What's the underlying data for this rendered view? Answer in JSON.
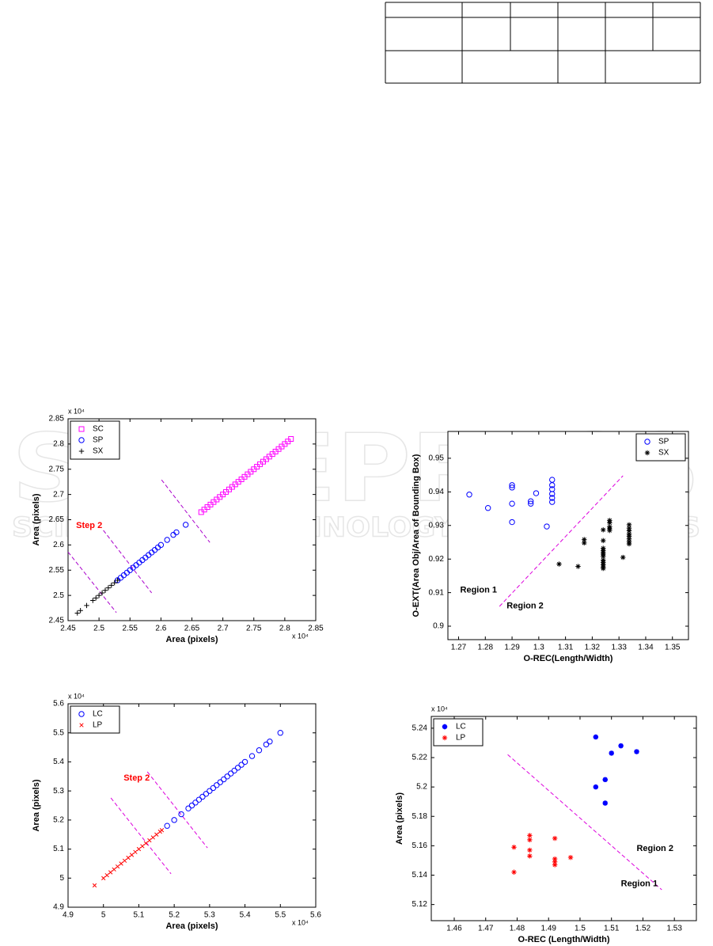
{
  "watermark": {
    "title": "SCITEPRESS",
    "subtitle": "SCIENCE AND TECHNOLOGY PUBLICATIONS"
  },
  "chart_data": [
    {
      "type": "scatter",
      "x_label": "Area (pixels)",
      "y_label": "Area (pixels)",
      "x_exponent": "x 10⁴",
      "y_exponent": "x 10⁴",
      "xlim": [
        2.45,
        2.85
      ],
      "ylim": [
        2.45,
        2.85
      ],
      "xticks": [
        2.45,
        2.5,
        2.55,
        2.6,
        2.65,
        2.7,
        2.75,
        2.8,
        2.85
      ],
      "yticks": [
        2.45,
        2.5,
        2.55,
        2.6,
        2.65,
        2.7,
        2.75,
        2.8,
        2.85
      ],
      "legend": "upper left",
      "series": [
        {
          "name": "SC",
          "color": "#ff00ff",
          "marker": "square",
          "x": [
            2.665,
            2.67,
            2.675,
            2.68,
            2.685,
            2.69,
            2.695,
            2.7,
            2.705,
            2.71,
            2.715,
            2.72,
            2.725,
            2.73,
            2.735,
            2.74,
            2.745,
            2.75,
            2.755,
            2.76,
            2.765,
            2.77,
            2.775,
            2.78,
            2.785,
            2.79,
            2.795,
            2.8,
            2.805,
            2.81
          ],
          "y": [
            2.665,
            2.67,
            2.675,
            2.68,
            2.685,
            2.69,
            2.695,
            2.7,
            2.705,
            2.71,
            2.715,
            2.72,
            2.725,
            2.73,
            2.735,
            2.74,
            2.745,
            2.75,
            2.755,
            2.76,
            2.765,
            2.77,
            2.775,
            2.78,
            2.785,
            2.79,
            2.795,
            2.8,
            2.805,
            2.81
          ]
        },
        {
          "name": "SP",
          "color": "#0000ff",
          "marker": "circle",
          "x": [
            2.53,
            2.535,
            2.54,
            2.545,
            2.55,
            2.555,
            2.56,
            2.565,
            2.57,
            2.575,
            2.58,
            2.585,
            2.59,
            2.595,
            2.6,
            2.61,
            2.62,
            2.625,
            2.64
          ],
          "y": [
            2.53,
            2.535,
            2.54,
            2.545,
            2.55,
            2.555,
            2.56,
            2.565,
            2.57,
            2.575,
            2.58,
            2.585,
            2.59,
            2.595,
            2.6,
            2.61,
            2.62,
            2.625,
            2.64
          ]
        },
        {
          "name": "SX",
          "color": "#000000",
          "marker": "plus",
          "x": [
            2.465,
            2.47,
            2.48,
            2.49,
            2.495,
            2.5,
            2.505,
            2.51,
            2.515,
            2.52,
            2.525,
            2.53
          ],
          "y": [
            2.465,
            2.47,
            2.48,
            2.49,
            2.495,
            2.5,
            2.505,
            2.51,
            2.515,
            2.52,
            2.525,
            2.53
          ]
        }
      ],
      "boundary_color": "#aa00cc",
      "boundaries": [
        {
          "x": [
            2.45,
            2.528
          ],
          "y": [
            2.586,
            2.466
          ]
        },
        {
          "x": [
            2.507,
            2.585
          ],
          "y": [
            2.629,
            2.505
          ]
        },
        {
          "x": [
            2.601,
            2.679
          ],
          "y": [
            2.729,
            2.605
          ]
        }
      ],
      "annotation_color": "#ff0000",
      "annotations": [
        {
          "text": "Step 2",
          "x": 2.463,
          "y": 2.638
        }
      ]
    },
    {
      "type": "scatter",
      "x_label": "O-REC(Length/Width)",
      "y_label": "O-EXT(Area Obj/Area of Bounding Box)",
      "xlim": [
        1.266,
        1.356
      ],
      "ylim": [
        0.896,
        0.958
      ],
      "xticks": [
        1.27,
        1.28,
        1.29,
        1.3,
        1.31,
        1.32,
        1.33,
        1.34,
        1.35
      ],
      "yticks": [
        0.9,
        0.91,
        0.92,
        0.93,
        0.94,
        0.95
      ],
      "legend": "upper right",
      "series": [
        {
          "name": "SP",
          "color": "#0000ff",
          "marker": "circle",
          "x": [
            1.274,
            1.281,
            1.29,
            1.29,
            1.29,
            1.29,
            1.297,
            1.297,
            1.299,
            1.303,
            1.305,
            1.305,
            1.305,
            1.305,
            1.305,
            1.305
          ],
          "y": [
            0.9392,
            0.9352,
            0.942,
            0.9413,
            0.9365,
            0.931,
            0.9372,
            0.9365,
            0.9396,
            0.9297,
            0.9436,
            0.942,
            0.9408,
            0.9394,
            0.9382,
            0.937
          ]
        },
        {
          "name": "SX",
          "color": "#000000",
          "marker": "star",
          "x": [
            1.3076,
            1.3147,
            1.317,
            1.317,
            1.3241,
            1.3241,
            1.3241,
            1.3241,
            1.3241,
            1.3241,
            1.3241,
            1.3241,
            1.3241,
            1.3241,
            1.3241,
            1.3241,
            1.3265,
            1.3265,
            1.3265,
            1.3265,
            1.3265,
            1.3315,
            1.3338,
            1.3338,
            1.3338,
            1.3338,
            1.3338,
            1.3338,
            1.3338,
            1.3338
          ],
          "y": [
            0.9185,
            0.9178,
            0.9258,
            0.9248,
            0.9287,
            0.9255,
            0.9232,
            0.9225,
            0.922,
            0.9215,
            0.9208,
            0.9197,
            0.919,
            0.9183,
            0.9176,
            0.9172,
            0.9315,
            0.9308,
            0.9296,
            0.929,
            0.9285,
            0.9205,
            0.9302,
            0.9292,
            0.9284,
            0.9275,
            0.9268,
            0.926,
            0.9252,
            0.9245
          ]
        }
      ],
      "boundary_color": "#dd00dd",
      "boundaries": [
        {
          "x": [
            1.2853,
            1.3315
          ],
          "y": [
            0.9059,
            0.9448
          ]
        }
      ],
      "annotation_color": "#000000",
      "annotations": [
        {
          "text": "Region 1",
          "x": 1.2706,
          "y": 0.9107
        },
        {
          "text": "Region 2",
          "x": 1.288,
          "y": 0.906
        }
      ]
    },
    {
      "type": "scatter",
      "x_label": "Area (pixels)",
      "y_label": "Area (pixels)",
      "x_exponent": "x 10⁴",
      "y_exponent": "x 10⁴",
      "xlim": [
        4.9,
        5.6
      ],
      "ylim": [
        4.9,
        5.6
      ],
      "xticks": [
        4.9,
        5,
        5.1,
        5.2,
        5.3,
        5.4,
        5.5,
        5.6
      ],
      "yticks": [
        4.9,
        5,
        5.1,
        5.2,
        5.3,
        5.4,
        5.5,
        5.6
      ],
      "legend": "upper left",
      "series": [
        {
          "name": "LC",
          "color": "#0000ff",
          "marker": "circle",
          "x": [
            5.18,
            5.2,
            5.22,
            5.24,
            5.25,
            5.26,
            5.27,
            5.28,
            5.29,
            5.3,
            5.31,
            5.32,
            5.33,
            5.34,
            5.35,
            5.36,
            5.37,
            5.38,
            5.39,
            5.4,
            5.42,
            5.44,
            5.46,
            5.47,
            5.5
          ],
          "y": [
            5.18,
            5.2,
            5.22,
            5.24,
            5.25,
            5.26,
            5.27,
            5.28,
            5.29,
            5.3,
            5.31,
            5.32,
            5.33,
            5.34,
            5.35,
            5.36,
            5.37,
            5.38,
            5.39,
            5.4,
            5.42,
            5.44,
            5.46,
            5.47,
            5.5
          ]
        },
        {
          "name": "LP",
          "color": "#ff0000",
          "marker": "x",
          "x": [
            4.975,
            5,
            5.01,
            5.02,
            5.03,
            5.04,
            5.05,
            5.06,
            5.07,
            5.08,
            5.09,
            5.1,
            5.11,
            5.12,
            5.13,
            5.14,
            5.15,
            5.16,
            5.165
          ],
          "y": [
            4.975,
            5,
            5.01,
            5.02,
            5.03,
            5.04,
            5.05,
            5.06,
            5.07,
            5.08,
            5.09,
            5.1,
            5.11,
            5.12,
            5.13,
            5.14,
            5.15,
            5.16,
            5.165
          ]
        }
      ],
      "boundary_color": "#dd00dd",
      "boundaries": [
        {
          "x": [
            5.021,
            5.191
          ],
          "y": [
            5.276,
            5.015
          ]
        },
        {
          "x": [
            5.124,
            5.294
          ],
          "y": [
            5.366,
            5.104
          ]
        }
      ],
      "annotation_color": "#ff0000",
      "annotations": [
        {
          "text": "Step 2",
          "x": 5.057,
          "y": 5.344
        }
      ]
    },
    {
      "type": "scatter",
      "x_label": "O-REC (Length/Width)",
      "y_label": "Area (pixels)",
      "y_exponent": "x 10⁴",
      "xlim": [
        1.4527,
        1.537
      ],
      "ylim": [
        5.109,
        5.248
      ],
      "xticks": [
        1.46,
        1.47,
        1.48,
        1.49,
        1.5,
        1.51,
        1.52,
        1.53
      ],
      "yticks": [
        5.12,
        5.14,
        5.16,
        5.18,
        5.2,
        5.22,
        5.24
      ],
      "legend": "upper left",
      "series": [
        {
          "name": "LC",
          "color": "#0000ff",
          "marker": "bold-star",
          "x": [
            1.505,
            1.51,
            1.513,
            1.518,
            1.508,
            1.505,
            1.508
          ],
          "y": [
            5.234,
            5.223,
            5.228,
            5.224,
            5.205,
            5.2,
            5.189
          ]
        },
        {
          "name": "LP",
          "color": "#ff0000",
          "marker": "star",
          "x": [
            1.479,
            1.479,
            1.484,
            1.484,
            1.484,
            1.484,
            1.492,
            1.492,
            1.492,
            1.492,
            1.497
          ],
          "y": [
            5.159,
            5.142,
            5.167,
            5.164,
            5.157,
            5.153,
            5.165,
            5.151,
            5.149,
            5.147,
            5.152
          ]
        }
      ],
      "boundary_color": "#dd00dd",
      "boundaries": [
        {
          "x": [
            1.477,
            1.526
          ],
          "y": [
            5.222,
            5.13
          ]
        }
      ],
      "annotation_color": "#000000",
      "annotations": [
        {
          "text": "Region 2",
          "x": 1.518,
          "y": 5.158
        },
        {
          "text": "Region 1",
          "x": 1.513,
          "y": 5.134
        }
      ]
    }
  ]
}
